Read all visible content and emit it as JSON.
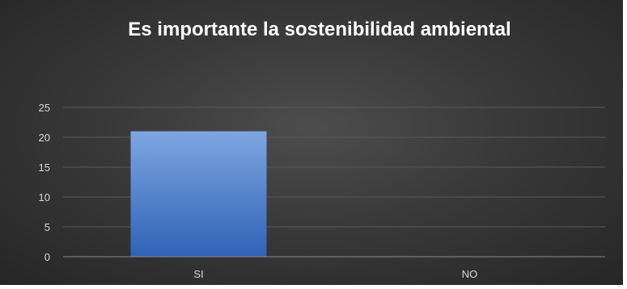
{
  "chart_data": {
    "type": "bar",
    "title": "Es importante la sostenibilidad ambiental",
    "categories": [
      "SI",
      "NO"
    ],
    "values": [
      21,
      0
    ],
    "ylim": [
      0,
      25
    ],
    "yticks": [
      0,
      5,
      10,
      15,
      20,
      25
    ],
    "grid": true,
    "legend": "none",
    "colors": {
      "bar_top": "#7ea6e0",
      "bar_bottom": "#2f63b8",
      "gridline": "#5a5a5a",
      "axis_line": "#8c8c8c",
      "text": "#d9d9d9",
      "title": "#ffffff"
    }
  }
}
